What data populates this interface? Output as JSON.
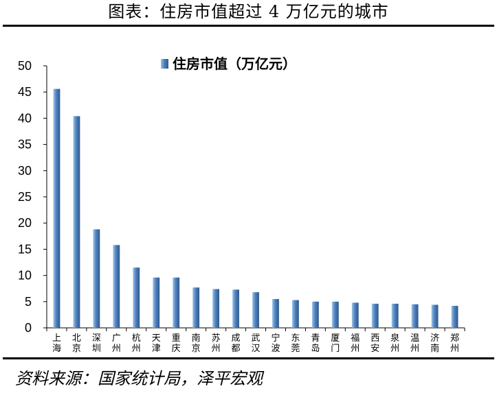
{
  "header": {
    "title": "图表：住房市值超过 4 万亿元的城市"
  },
  "footer": {
    "source": "资料来源：国家统计局，泽平宏观"
  },
  "colors": {
    "bar_light": "#9dc3e6",
    "bar_main": "#4f81bd",
    "bar_dark": "#2e5a8e",
    "axis": "#000000"
  },
  "chart_data": {
    "type": "bar",
    "title": "",
    "xlabel": "",
    "ylabel": "",
    "ylim": [
      0,
      50
    ],
    "yticks": [
      0,
      5,
      10,
      15,
      20,
      25,
      30,
      35,
      40,
      45,
      50
    ],
    "grid": false,
    "legend_position": "top-center",
    "categories": [
      "上海",
      "北京",
      "深圳",
      "广州",
      "杭州",
      "天津",
      "重庆",
      "南京",
      "苏州",
      "成都",
      "武汉",
      "宁波",
      "东莞",
      "青岛",
      "厦门",
      "福州",
      "西安",
      "泉州",
      "温州",
      "济南",
      "郑州"
    ],
    "series": [
      {
        "name": "住房市值（万亿元）",
        "values": [
          45.6,
          40.4,
          18.8,
          15.8,
          11.5,
          9.6,
          9.6,
          7.7,
          7.4,
          7.3,
          6.8,
          5.5,
          5.3,
          5.0,
          5.0,
          4.8,
          4.6,
          4.6,
          4.5,
          4.4,
          4.2
        ]
      }
    ]
  }
}
